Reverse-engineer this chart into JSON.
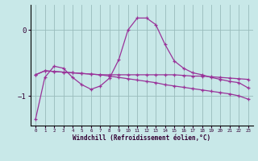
{
  "xlabel": "Windchill (Refroidissement éolien,°C)",
  "hours": [
    0,
    1,
    2,
    3,
    4,
    5,
    6,
    7,
    8,
    9,
    10,
    11,
    12,
    13,
    14,
    15,
    16,
    17,
    18,
    19,
    20,
    21,
    22,
    23
  ],
  "line1": [
    -1.35,
    -0.72,
    -0.55,
    -0.58,
    -0.72,
    -0.83,
    -0.9,
    -0.85,
    -0.73,
    -0.45,
    0.0,
    0.18,
    0.18,
    0.08,
    -0.22,
    -0.47,
    -0.58,
    -0.65,
    -0.68,
    -0.72,
    -0.75,
    -0.78,
    -0.8,
    -0.88
  ],
  "line2": [
    -0.68,
    -0.62,
    -0.63,
    -0.64,
    -0.65,
    -0.66,
    -0.67,
    -0.68,
    -0.68,
    -0.68,
    -0.68,
    -0.68,
    -0.68,
    -0.68,
    -0.68,
    -0.68,
    -0.69,
    -0.7,
    -0.7,
    -0.71,
    -0.72,
    -0.73,
    -0.74,
    -0.75
  ],
  "line3": [
    -0.68,
    -0.62,
    -0.63,
    -0.64,
    -0.65,
    -0.66,
    -0.67,
    -0.68,
    -0.7,
    -0.72,
    -0.74,
    -0.76,
    -0.78,
    -0.8,
    -0.83,
    -0.85,
    -0.87,
    -0.89,
    -0.91,
    -0.93,
    -0.95,
    -0.97,
    -1.0,
    -1.05
  ],
  "line_color": "#993399",
  "bg_color": "#c8e8e8",
  "grid_color": "#99bbbb",
  "yticks": [
    0,
    -1
  ],
  "xlim": [
    -0.5,
    23.5
  ],
  "ylim": [
    -1.45,
    0.38
  ]
}
